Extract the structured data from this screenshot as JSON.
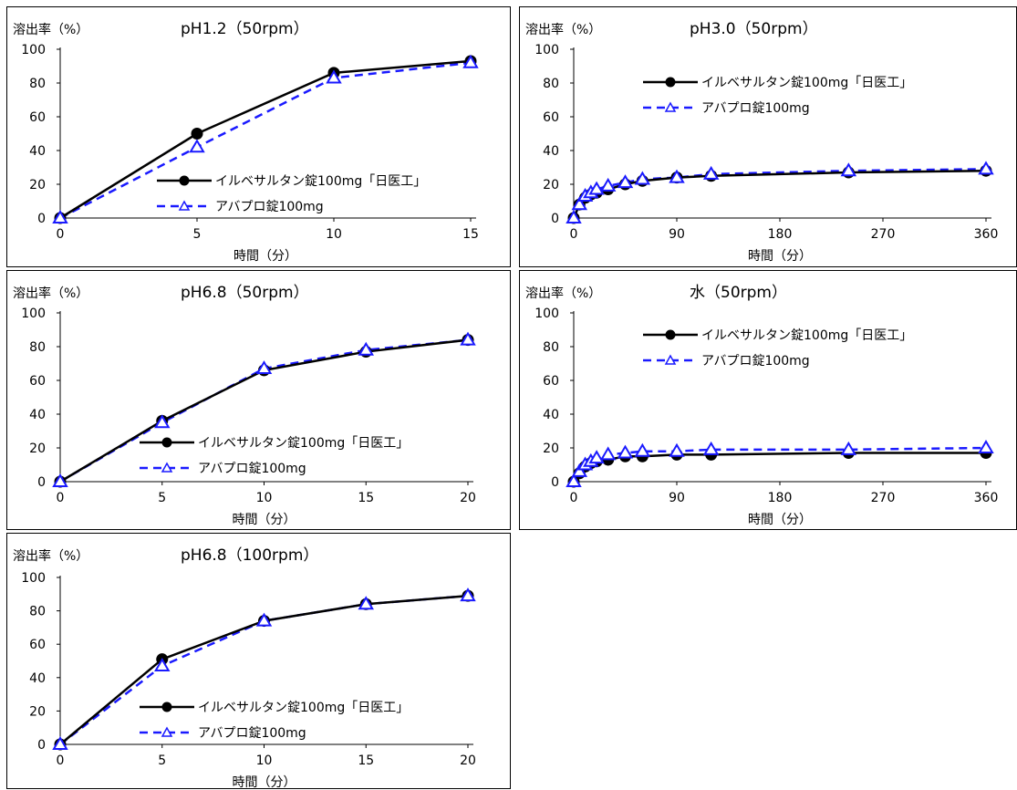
{
  "legend_labels": {
    "test": "イルベサルタン錠100mg「日医工」",
    "ref": "アバプロ錠100mg"
  },
  "series_style": {
    "test": {
      "color": "#000000",
      "dash": "solid",
      "marker": "filled-circle"
    },
    "ref": {
      "color": "#1a1aff",
      "dash": "dashed",
      "marker": "open-triangle"
    }
  },
  "chart_data": [
    {
      "type": "line",
      "title": "pH1.2（50rpm）",
      "ylabel": "溶出率（%）",
      "xlabel": "時間（分）",
      "xlim": [
        0,
        15
      ],
      "ylim": [
        0,
        100
      ],
      "xticks": [
        0,
        5,
        10,
        15
      ],
      "yticks": [
        0,
        20,
        40,
        60,
        80,
        100
      ],
      "legend_position": "bottom-right",
      "series": [
        {
          "name": "イルベサルタン錠100mg「日医工」",
          "x": [
            0,
            5,
            10,
            15
          ],
          "y": [
            0,
            50,
            86,
            93
          ]
        },
        {
          "name": "アバプロ錠100mg",
          "x": [
            0,
            5,
            10,
            15
          ],
          "y": [
            0,
            42,
            83,
            92
          ]
        }
      ]
    },
    {
      "type": "line",
      "title": "pH3.0（50rpm）",
      "ylabel": "溶出率（%）",
      "xlabel": "時間（分）",
      "xlim": [
        0,
        360
      ],
      "ylim": [
        0,
        100
      ],
      "xticks": [
        0,
        90,
        180,
        270,
        360
      ],
      "yticks": [
        0,
        20,
        40,
        60,
        80,
        100
      ],
      "legend_position": "top-right",
      "series": [
        {
          "name": "イルベサルタン錠100mg「日医工」",
          "x": [
            0,
            5,
            10,
            15,
            20,
            30,
            45,
            60,
            90,
            120,
            240,
            360
          ],
          "y": [
            0,
            8,
            12,
            14,
            15,
            17,
            20,
            22,
            24,
            25,
            27,
            28
          ]
        },
        {
          "name": "アバプロ錠100mg",
          "x": [
            0,
            5,
            10,
            15,
            20,
            30,
            45,
            60,
            90,
            120,
            240,
            360
          ],
          "y": [
            0,
            8,
            13,
            15,
            17,
            19,
            21,
            23,
            24,
            26,
            28,
            29
          ]
        }
      ]
    },
    {
      "type": "line",
      "title": "pH6.8（50rpm）",
      "ylabel": "溶出率（%）",
      "xlabel": "時間（分）",
      "xlim": [
        0,
        20
      ],
      "ylim": [
        0,
        100
      ],
      "xticks": [
        0,
        5,
        10,
        15,
        20
      ],
      "yticks": [
        0,
        20,
        40,
        60,
        80,
        100
      ],
      "legend_position": "bottom-right",
      "series": [
        {
          "name": "イルベサルタン錠100mg「日医工」",
          "x": [
            0,
            5,
            10,
            15,
            20
          ],
          "y": [
            0,
            36,
            66,
            77,
            84
          ]
        },
        {
          "name": "アバプロ錠100mg",
          "x": [
            0,
            5,
            10,
            15,
            20
          ],
          "y": [
            0,
            35,
            67,
            78,
            84
          ]
        }
      ]
    },
    {
      "type": "line",
      "title": "水（50rpm）",
      "ylabel": "溶出率（%）",
      "xlabel": "時間（分）",
      "xlim": [
        0,
        360
      ],
      "ylim": [
        0,
        100
      ],
      "xticks": [
        0,
        90,
        180,
        270,
        360
      ],
      "yticks": [
        0,
        20,
        40,
        60,
        80,
        100
      ],
      "legend_position": "top-right",
      "series": [
        {
          "name": "イルベサルタン錠100mg「日医工」",
          "x": [
            0,
            5,
            10,
            15,
            20,
            30,
            45,
            60,
            90,
            120,
            240,
            360
          ],
          "y": [
            0,
            5,
            9,
            11,
            12,
            13,
            15,
            15,
            16,
            16,
            17,
            17
          ]
        },
        {
          "name": "アバプロ錠100mg",
          "x": [
            0,
            5,
            10,
            15,
            20,
            30,
            45,
            60,
            90,
            120,
            240,
            360
          ],
          "y": [
            0,
            6,
            10,
            12,
            14,
            16,
            17,
            18,
            18,
            19,
            19,
            20
          ]
        }
      ]
    },
    {
      "type": "line",
      "title": "pH6.8（100rpm）",
      "ylabel": "溶出率（%）",
      "xlabel": "時間（分）",
      "xlim": [
        0,
        20
      ],
      "ylim": [
        0,
        100
      ],
      "xticks": [
        0,
        5,
        10,
        15,
        20
      ],
      "yticks": [
        0,
        20,
        40,
        60,
        80,
        100
      ],
      "legend_position": "bottom-right",
      "series": [
        {
          "name": "イルベサルタン錠100mg「日医工」",
          "x": [
            0,
            5,
            10,
            15,
            20
          ],
          "y": [
            0,
            51,
            74,
            84,
            89
          ]
        },
        {
          "name": "アバプロ錠100mg",
          "x": [
            0,
            5,
            10,
            15,
            20
          ],
          "y": [
            0,
            47,
            74,
            84,
            89
          ]
        }
      ]
    }
  ]
}
